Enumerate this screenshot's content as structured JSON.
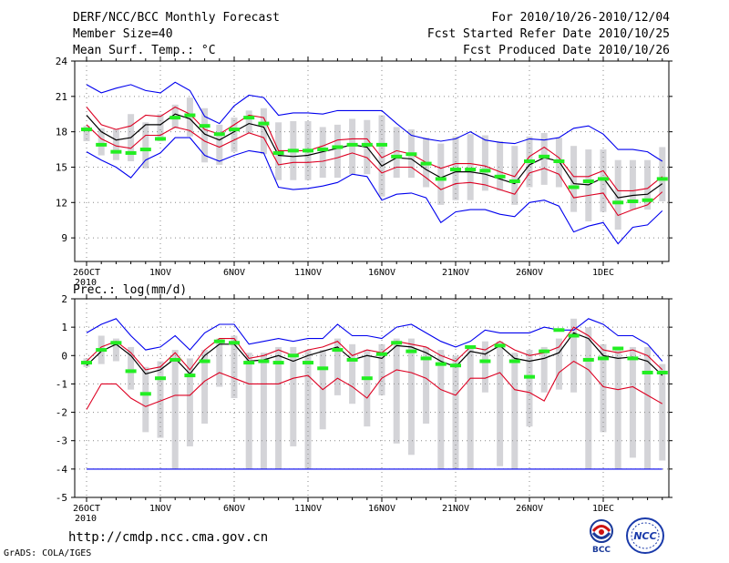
{
  "header": {
    "title": "DERF/NCC/BCC Monthly Forecast",
    "member_size": "Member Size=40",
    "variable": "Mean Surf. Temp.: °C",
    "period": "For 2010/10/26-2010/12/04",
    "refer_date": "Fcst Started Refer Date 2010/10/25",
    "produced_date": "Fcst Produced Date 2010/10/26"
  },
  "footer": {
    "url": "http://cmdp.ncc.cma.gov.cn",
    "credit": "GrADS: COLA/IGES",
    "logo_left_text": "BCC",
    "logo_right_text": "NCC"
  },
  "colors": {
    "ensemble_max_min": "#0000ee",
    "spread_bounds": "#dd0022",
    "ensemble_mean": "#000000",
    "observation": "#22ee22",
    "member_range_bar": "#d4d4d8",
    "grid": "#888888"
  },
  "chart_data": [
    {
      "type": "line",
      "title": "Mean Surf. Temp.: °C",
      "x_ticks": [
        "26OCT",
        "1NOV",
        "6NOV",
        "11NOV",
        "16NOV",
        "21NOV",
        "26NOV",
        "1DEC"
      ],
      "x_year": "2010",
      "x": [
        1,
        2,
        3,
        4,
        5,
        6,
        7,
        8,
        9,
        10,
        11,
        12,
        13,
        14,
        15,
        16,
        17,
        18,
        19,
        20,
        21,
        22,
        23,
        24,
        25,
        26,
        27,
        28,
        29,
        30,
        31,
        32,
        33,
        34,
        35,
        36,
        37,
        38,
        39,
        40
      ],
      "ylim": [
        7,
        24
      ],
      "yticks": [
        9,
        12,
        15,
        18,
        21,
        24
      ],
      "series": [
        {
          "name": "ensemble max",
          "values": [
            22,
            21.3,
            21.7,
            22,
            21.5,
            21.3,
            22.2,
            21.5,
            19.3,
            18.7,
            20.2,
            21.1,
            20.9,
            19.4,
            19.6,
            19.6,
            19.5,
            19.8,
            19.8,
            19.8,
            19.8,
            18.7,
            17.7,
            17.4,
            17.2,
            17.4,
            18,
            17.3,
            17.1,
            17,
            17.4,
            17.3,
            17.5,
            18.3,
            18.5,
            17.8,
            16.5,
            16.5,
            16.3,
            15.5
          ]
        },
        {
          "name": "upper bound",
          "values": [
            20.1,
            18.6,
            18.2,
            18.5,
            19.4,
            19.3,
            20.1,
            19.5,
            18.2,
            17.8,
            18.6,
            19.4,
            19.2,
            16.4,
            16.4,
            16.4,
            16.8,
            17.3,
            17.4,
            17.4,
            15.8,
            16.4,
            16.1,
            15.4,
            14.9,
            15.3,
            15.3,
            15.1,
            14.6,
            14.2,
            15.9,
            16.7,
            15.8,
            14.2,
            14.2,
            14.7,
            13,
            13,
            13.2,
            14.2
          ]
        },
        {
          "name": "ensemble mean",
          "values": [
            19.4,
            18,
            17.3,
            17.5,
            18.6,
            18.6,
            19.5,
            19.1,
            17.8,
            17.3,
            18,
            18.7,
            18.4,
            16,
            15.9,
            16,
            16.3,
            16.6,
            16.9,
            16.7,
            15.1,
            15.8,
            15.7,
            14.8,
            14.1,
            14.6,
            14.6,
            14.4,
            14,
            13.6,
            15.2,
            15.8,
            15.5,
            13.6,
            13.5,
            14.1,
            12.4,
            12.6,
            12.7,
            13.6
          ]
        },
        {
          "name": "lower bound",
          "values": [
            18.6,
            17.4,
            16.8,
            16.6,
            17.7,
            17.7,
            18.4,
            18.1,
            17.2,
            16.7,
            17.3,
            17.9,
            17.5,
            15.2,
            15.4,
            15.4,
            15.5,
            15.8,
            16.2,
            15.8,
            14.5,
            15,
            15,
            14.1,
            13.1,
            13.6,
            13.7,
            13.5,
            13.1,
            12.7,
            14.5,
            14.9,
            14.4,
            12.4,
            12.6,
            12.8,
            10.9,
            11.4,
            11.8,
            12.9
          ]
        },
        {
          "name": "ensemble min",
          "values": [
            16.3,
            15.6,
            15,
            14.1,
            15.6,
            16.2,
            17.5,
            17.5,
            16,
            15.5,
            16,
            16.4,
            16.2,
            13.3,
            13.1,
            13.2,
            13.4,
            13.7,
            14.4,
            14.2,
            12.2,
            12.7,
            12.8,
            12.4,
            10.3,
            11.2,
            11.4,
            11.4,
            11,
            10.8,
            12,
            12.2,
            11.7,
            9.5,
            10,
            10.3,
            8.5,
            9.9,
            10.1,
            11.3
          ]
        },
        {
          "name": "observed",
          "values": [
            18.2,
            16.9,
            16.3,
            16.2,
            16.5,
            17.4,
            19.2,
            19.4,
            18.5,
            17.8,
            18.2,
            19.2,
            18.7,
            16.2,
            16.4,
            16.4,
            16.5,
            16.7,
            16.9,
            16.9,
            16.9,
            15.9,
            16.1,
            15.3,
            14,
            14.8,
            14.8,
            14.7,
            14.2,
            13.8,
            15.5,
            15.9,
            15.5,
            13.3,
            13.8,
            14,
            12,
            12.1,
            12.2,
            14
          ]
        },
        {
          "name": "member max",
          "values": [
            18.5,
            18.3,
            18.2,
            19.5,
            18.8,
            19.5,
            20.3,
            20.9,
            20,
            18.6,
            19.2,
            19.8,
            20,
            18.8,
            18.9,
            18.9,
            18.4,
            18.6,
            19.1,
            19,
            19.4,
            18.4,
            18.2,
            17.5,
            17,
            17.6,
            17.8,
            17.7,
            17.2,
            16.8,
            17.6,
            17.9,
            17.5,
            16.8,
            16.5,
            16.5,
            15.6,
            15.6,
            15.6,
            16.7
          ]
        },
        {
          "name": "member min",
          "values": [
            17.2,
            16,
            15.6,
            15.5,
            14.9,
            17.2,
            18.3,
            17.6,
            15.4,
            15.2,
            16.3,
            17.9,
            16.1,
            13.9,
            13.9,
            13.9,
            14.1,
            14.1,
            14.4,
            14.4,
            12.5,
            14.1,
            14.1,
            13.3,
            11.8,
            12.2,
            12.2,
            13,
            13,
            11.8,
            13.3,
            13.5,
            13.3,
            11.2,
            10.4,
            11.2,
            9.7,
            11.4,
            11.4,
            12.1
          ]
        }
      ]
    },
    {
      "type": "line",
      "title": "Prec.: log(mm/d)",
      "x_ticks": [
        "26OCT",
        "1NOV",
        "6NOV",
        "11NOV",
        "16NOV",
        "21NOV",
        "26NOV",
        "1DEC"
      ],
      "x_year": "2010",
      "x": [
        1,
        2,
        3,
        4,
        5,
        6,
        7,
        8,
        9,
        10,
        11,
        12,
        13,
        14,
        15,
        16,
        17,
        18,
        19,
        20,
        21,
        22,
        23,
        24,
        25,
        26,
        27,
        28,
        29,
        30,
        31,
        32,
        33,
        34,
        35,
        36,
        37,
        38,
        39,
        40
      ],
      "ylim": [
        -5,
        2
      ],
      "yticks": [
        -5,
        -4,
        -3,
        -2,
        -1,
        0,
        1,
        2
      ],
      "series": [
        {
          "name": "ensemble max",
          "values": [
            0.8,
            1.1,
            1.3,
            0.7,
            0.2,
            0.3,
            0.7,
            0.2,
            0.8,
            1.1,
            1.1,
            0.4,
            0.5,
            0.6,
            0.5,
            0.6,
            0.6,
            1.1,
            0.7,
            0.7,
            0.6,
            1.0,
            1.1,
            0.8,
            0.5,
            0.3,
            0.5,
            0.9,
            0.8,
            0.8,
            0.8,
            1.0,
            0.9,
            0.9,
            1.3,
            1.1,
            0.7,
            0.7,
            0.4,
            -0.2
          ]
        },
        {
          "name": "upper bound",
          "values": [
            -0.2,
            0.3,
            0.5,
            0.1,
            -0.5,
            -0.4,
            0.1,
            -0.5,
            0.2,
            0.6,
            0.6,
            -0.1,
            0,
            0.2,
            0,
            0.2,
            0.3,
            0.5,
            0,
            0.2,
            0.1,
            0.5,
            0.4,
            0.3,
            0,
            -0.2,
            0.3,
            0.2,
            0.5,
            0.2,
            0,
            0.1,
            0.3,
            1.0,
            0.7,
            0.2,
            0.1,
            0.2,
            0,
            -0.5
          ]
        },
        {
          "name": "ensemble mean",
          "values": [
            -0.35,
            0.15,
            0.4,
            0,
            -0.65,
            -0.5,
            -0.1,
            -0.65,
            0,
            0.4,
            0.4,
            -0.2,
            -0.15,
            0,
            -0.2,
            0,
            0.15,
            0.3,
            -0.15,
            0,
            -0.1,
            0.35,
            0.3,
            0.1,
            -0.2,
            -0.4,
            0.15,
            0.05,
            0.35,
            -0.1,
            -0.2,
            -0.1,
            0.1,
            0.8,
            0.6,
            0,
            -0.1,
            -0.05,
            -0.2,
            -0.7
          ]
        },
        {
          "name": "lower bound",
          "values": [
            -1.9,
            -1,
            -1,
            -1.5,
            -1.8,
            -1.6,
            -1.4,
            -1.4,
            -0.9,
            -0.6,
            -0.8,
            -1,
            -1,
            -1,
            -0.8,
            -0.7,
            -1.2,
            -0.8,
            -1.1,
            -1.5,
            -0.8,
            -0.5,
            -0.6,
            -0.8,
            -1.2,
            -1.4,
            -0.8,
            -0.8,
            -0.6,
            -1.2,
            -1.3,
            -1.6,
            -0.6,
            -0.2,
            -0.5,
            -1.1,
            -1.2,
            -1.1,
            -1.4,
            -1.7
          ]
        },
        {
          "name": "ensemble min",
          "values": [
            -4,
            -4,
            -4,
            -4,
            -4,
            -4,
            -4,
            -4,
            -4,
            -4,
            -4,
            -4,
            -4,
            -4,
            -4,
            -4,
            -4,
            -4,
            -4,
            -4,
            -4,
            -4,
            -4,
            -4,
            -4,
            -4,
            -4,
            -4,
            -4,
            -4,
            -4,
            -4,
            -4,
            -4,
            -4,
            -4,
            -4,
            -4,
            -4,
            -4
          ]
        },
        {
          "name": "observed",
          "values": [
            -0.25,
            0.2,
            0.45,
            -0.55,
            -1.35,
            -0.8,
            -0.15,
            -0.7,
            -0.2,
            0.5,
            0.45,
            -0.25,
            -0.2,
            -0.25,
            0,
            -0.25,
            -0.45,
            0.2,
            -0.15,
            -0.8,
            0.05,
            0.45,
            0.15,
            -0.1,
            -0.3,
            -0.35,
            0.3,
            -0.2,
            0.35,
            -0.2,
            -0.75,
            0.15,
            0.9,
            0.7,
            -0.15,
            -0.1,
            0.25,
            -0.1,
            -0.6,
            -0.6
          ]
        },
        {
          "name": "member max",
          "values": [
            -0.1,
            0.7,
            0.6,
            0.3,
            -0.4,
            -0.2,
            0.2,
            -0.1,
            0.2,
            0.6,
            0.7,
            0.1,
            0.1,
            0.3,
            0.3,
            0.2,
            0.2,
            0.6,
            0.4,
            0.2,
            0.4,
            0.6,
            0.6,
            0.3,
            0.2,
            0,
            0.3,
            0.5,
            0.5,
            0.1,
            0.2,
            0.3,
            0.6,
            1.3,
            1.0,
            0.4,
            0.3,
            0.3,
            0.3,
            -0.3
          ]
        },
        {
          "name": "member min",
          "values": [
            -0.4,
            -0.3,
            -0.2,
            -1.2,
            -2.7,
            -2.9,
            -4,
            -3.2,
            -2.4,
            -1.1,
            -1.5,
            -4,
            -4,
            -4,
            -3.2,
            -4,
            -2.6,
            -1.4,
            -1.7,
            -2.5,
            -1.4,
            -3.1,
            -3.5,
            -2.4,
            -4,
            -4,
            -4,
            -1.3,
            -3.9,
            -4,
            -2.5,
            -1.3,
            -1.2,
            -1.3,
            -4,
            -2.7,
            -4,
            -3.6,
            -4,
            -3.7
          ]
        }
      ]
    }
  ]
}
